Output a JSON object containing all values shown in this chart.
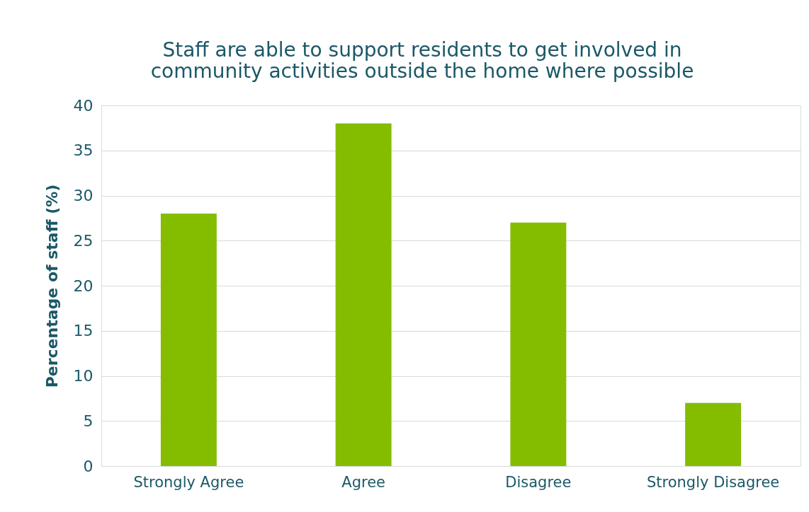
{
  "chart_data": {
    "type": "bar",
    "title": [
      "Staff are able to support residents to get involved in",
      "community activities outside the home where possible"
    ],
    "ylabel": "Percentage of staff (%)",
    "categories": [
      "Strongly Agree",
      "Agree",
      "Disagree",
      "Strongly Disagree"
    ],
    "values": [
      28,
      38,
      27,
      7
    ],
    "color": "#84bd00",
    "ylim": [
      0,
      40
    ],
    "yticks": [
      0,
      5,
      10,
      15,
      20,
      25,
      30,
      35,
      40
    ],
    "grid": "y"
  }
}
